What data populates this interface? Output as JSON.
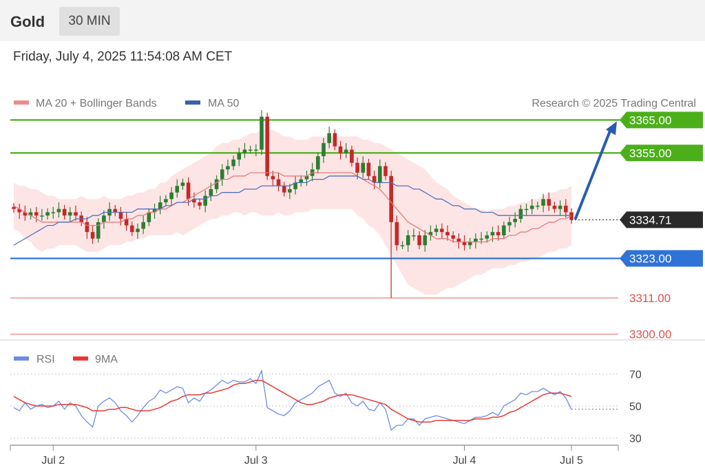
{
  "header": {
    "instrument": "Gold",
    "timeframe": "30 MIN",
    "datetime": "Friday, July 4, 2025 11:54:08 AM CET"
  },
  "legend": {
    "ma20_label": "MA 20 + Bollinger Bands",
    "ma50_label": "MA 50",
    "copyright": "Research © 2025 Trading Central",
    "rsi_label": "RSI",
    "rsi_ma_label": "9MA"
  },
  "colors": {
    "resistance": "#4caf1a",
    "support": "#2f73d8",
    "target_low": "#e05050",
    "current": "#2a2a2a",
    "ma20": "#e87a7a",
    "ma50": "#5070c0",
    "band": "#fde0e0",
    "bull": "#2e7d32",
    "bear": "#c62828",
    "rsi": "#6c8ce8",
    "rsi_ma": "#e53935"
  },
  "chart_data": [
    {
      "type": "candlestick",
      "ylim": [
        3297,
        3368
      ],
      "levels": [
        {
          "value": 3365.0,
          "label": "3365.00",
          "role": "resistance"
        },
        {
          "value": 3355.0,
          "label": "3355.00",
          "role": "resistance"
        },
        {
          "value": 3334.71,
          "label": "3334.71",
          "role": "current"
        },
        {
          "value": 3323.0,
          "label": "3323.00",
          "role": "support"
        },
        {
          "value": 3311.0,
          "label": "3311.00",
          "role": "target_low"
        },
        {
          "value": 3300.0,
          "label": "3300.00",
          "role": "target_low"
        }
      ],
      "x_ticks": [
        {
          "bar": 7,
          "label": "Jul 2"
        },
        {
          "bar": 43,
          "label": "Jul 3"
        },
        {
          "bar": 80,
          "label": "Jul 4"
        },
        {
          "bar": 99,
          "label": "Jul 5"
        }
      ],
      "close": [
        3338,
        3337,
        3336,
        3337,
        3336,
        3336,
        3337,
        3337,
        3338,
        3336,
        3337,
        3336,
        3334,
        3331,
        3329,
        3334,
        3336,
        3338,
        3337,
        3335,
        3333,
        3331,
        3332,
        3334,
        3337,
        3338,
        3340,
        3341,
        3343,
        3345,
        3346,
        3341,
        3340,
        3339,
        3342,
        3344,
        3347,
        3350,
        3351,
        3353,
        3355,
        3356,
        3356,
        3356,
        3366,
        3348,
        3347,
        3345,
        3343,
        3344,
        3346,
        3347,
        3348,
        3350,
        3354,
        3358,
        3361,
        3357,
        3355,
        3356,
        3352,
        3349,
        3352,
        3348,
        3346,
        3351,
        3348,
        3334,
        3327,
        3327,
        3330,
        3330,
        3327,
        3330,
        3331,
        3332,
        3331,
        3330,
        3329,
        3328,
        3327,
        3328,
        3329,
        3329,
        3330,
        3331,
        3330,
        3333,
        3334,
        3335,
        3338,
        3338,
        3339,
        3339,
        3341,
        3339,
        3338,
        3339,
        3337,
        3334.71
      ],
      "ma20": [
        3339,
        3338,
        3337,
        3336,
        3335,
        3334,
        3334,
        3334,
        3334,
        3334,
        3334,
        3334,
        3334,
        3333,
        3333,
        3333,
        3334,
        3334,
        3334,
        3334,
        3335,
        3335,
        3336,
        3336,
        3337,
        3337,
        3338,
        3338,
        3339,
        3340,
        3340,
        3341,
        3342,
        3343,
        3344,
        3345,
        3346,
        3347,
        3347,
        3348,
        3348,
        3348,
        3349,
        3349,
        3349,
        3349,
        3349,
        3349,
        3348,
        3348,
        3348,
        3348,
        3348,
        3349,
        3349,
        3349,
        3349,
        3349,
        3349,
        3349,
        3349,
        3348,
        3347,
        3346,
        3345,
        3344,
        3342,
        3340,
        3338,
        3336,
        3334,
        3333,
        3332,
        3331,
        3330,
        3329,
        3329,
        3329,
        3328,
        3328,
        3328,
        3328,
        3328,
        3328,
        3328,
        3329,
        3329,
        3329,
        3330,
        3330,
        3331,
        3331,
        3332,
        3332,
        3333,
        3334,
        3334,
        3335,
        3335,
        3336
      ],
      "ma50": [
        3327,
        3328,
        3329,
        3330,
        3331,
        3332,
        3333,
        3333,
        3334,
        3334,
        3334,
        3335,
        3335,
        3335,
        3336,
        3336,
        3337,
        3337,
        3337,
        3337,
        3337,
        3337,
        3338,
        3338,
        3338,
        3338,
        3338,
        3339,
        3339,
        3340,
        3340,
        3340,
        3341,
        3341,
        3341,
        3342,
        3342,
        3343,
        3343,
        3343,
        3343,
        3344,
        3344,
        3344,
        3345,
        3345,
        3345,
        3345,
        3345,
        3345,
        3346,
        3346,
        3346,
        3347,
        3347,
        3347,
        3348,
        3348,
        3348,
        3348,
        3348,
        3348,
        3347,
        3347,
        3346,
        3346,
        3346,
        3346,
        3345,
        3345,
        3345,
        3344,
        3344,
        3343,
        3342,
        3341,
        3341,
        3340,
        3339,
        3339,
        3338,
        3338,
        3338,
        3337,
        3337,
        3337,
        3336,
        3336,
        3336,
        3336,
        3336,
        3336,
        3336,
        3336,
        3336,
        3336,
        3336,
        3336,
        3336,
        3336
      ],
      "band_width": [
        7,
        7,
        8,
        8,
        9,
        9,
        8,
        8,
        7,
        7,
        7,
        7,
        8,
        8,
        8,
        8,
        8,
        7,
        7,
        7,
        7,
        7,
        7,
        7,
        7,
        7,
        8,
        8,
        9,
        9,
        10,
        10,
        10,
        10,
        10,
        10,
        11,
        11,
        11,
        11,
        11,
        12,
        12,
        12,
        13,
        13,
        13,
        12,
        12,
        12,
        11,
        11,
        11,
        11,
        11,
        11,
        11,
        11,
        11,
        11,
        11,
        12,
        12,
        13,
        13,
        14,
        15,
        16,
        17,
        18,
        19,
        19,
        19,
        19,
        18,
        17,
        16,
        15,
        14,
        13,
        12,
        11,
        10,
        10,
        9,
        9,
        9,
        9,
        9,
        9,
        9,
        9,
        9,
        9,
        9,
        9,
        9,
        9,
        9,
        9
      ]
    },
    {
      "type": "line",
      "series": [
        {
          "name": "RSI",
          "values": [
            49,
            47,
            52,
            48,
            50,
            51,
            49,
            50,
            53,
            48,
            52,
            50,
            44,
            40,
            37,
            50,
            53,
            55,
            52,
            47,
            44,
            40,
            44,
            49,
            53,
            55,
            60,
            58,
            60,
            62,
            61,
            52,
            55,
            53,
            58,
            60,
            63,
            66,
            64,
            66,
            65,
            65,
            67,
            64,
            72,
            49,
            47,
            45,
            44,
            47,
            52,
            54,
            56,
            58,
            62,
            64,
            66,
            58,
            56,
            58,
            52,
            50,
            53,
            48,
            47,
            52,
            48,
            35,
            38,
            38,
            42,
            42,
            38,
            42,
            43,
            44,
            43,
            42,
            41,
            40,
            39,
            41,
            43,
            43,
            44,
            46,
            44,
            50,
            52,
            54,
            58,
            57,
            59,
            59,
            61,
            59,
            57,
            59,
            55,
            48
          ]
        },
        {
          "name": "9MA",
          "values": [
            56,
            54,
            52,
            51,
            50,
            50,
            50,
            50,
            51,
            51,
            51,
            51,
            50,
            49,
            47,
            47,
            47,
            48,
            48,
            49,
            49,
            48,
            47,
            47,
            47,
            48,
            49,
            51,
            53,
            54,
            56,
            57,
            57,
            57,
            58,
            58,
            59,
            60,
            61,
            63,
            64,
            64,
            65,
            66,
            66,
            64,
            62,
            60,
            58,
            56,
            54,
            52,
            51,
            51,
            52,
            53,
            55,
            56,
            57,
            57,
            57,
            56,
            55,
            54,
            53,
            52,
            51,
            48,
            46,
            44,
            42,
            41,
            40,
            40,
            40,
            41,
            41,
            41,
            41,
            41,
            41,
            41,
            42,
            42,
            42,
            43,
            43,
            44,
            46,
            47,
            49,
            51,
            53,
            55,
            57,
            58,
            58,
            58,
            57,
            56
          ]
        }
      ],
      "ylim": [
        20,
        80
      ],
      "yticks": [
        30,
        50,
        70
      ]
    }
  ]
}
